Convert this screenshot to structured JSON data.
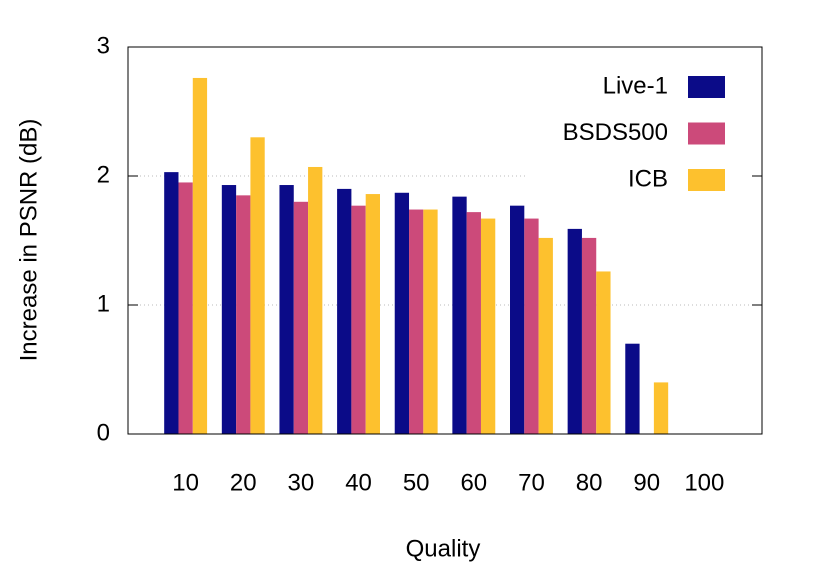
{
  "chart_data": {
    "type": "bar",
    "x_label": "Quality",
    "y_label": "Increase in PSNR (dB)",
    "categories": [
      "10",
      "20",
      "30",
      "40",
      "50",
      "60",
      "70",
      "80",
      "90",
      "100"
    ],
    "series": [
      {
        "name": "Live-1",
        "color": "#0b0b88",
        "values": [
          2.03,
          1.93,
          1.93,
          1.9,
          1.87,
          1.84,
          1.77,
          1.59,
          0.7,
          0
        ]
      },
      {
        "name": "BSDS500",
        "color": "#cc4a7a",
        "values": [
          1.95,
          1.85,
          1.8,
          1.77,
          1.74,
          1.72,
          1.67,
          1.52,
          0,
          0
        ]
      },
      {
        "name": "ICB",
        "color": "#fdc12e",
        "values": [
          2.76,
          2.3,
          2.07,
          1.86,
          1.74,
          1.67,
          1.52,
          1.26,
          0.4,
          0
        ]
      }
    ],
    "ylim": [
      0,
      3
    ],
    "yticks": [
      0,
      1,
      2,
      3
    ],
    "grid": true,
    "legend": "top-right"
  }
}
